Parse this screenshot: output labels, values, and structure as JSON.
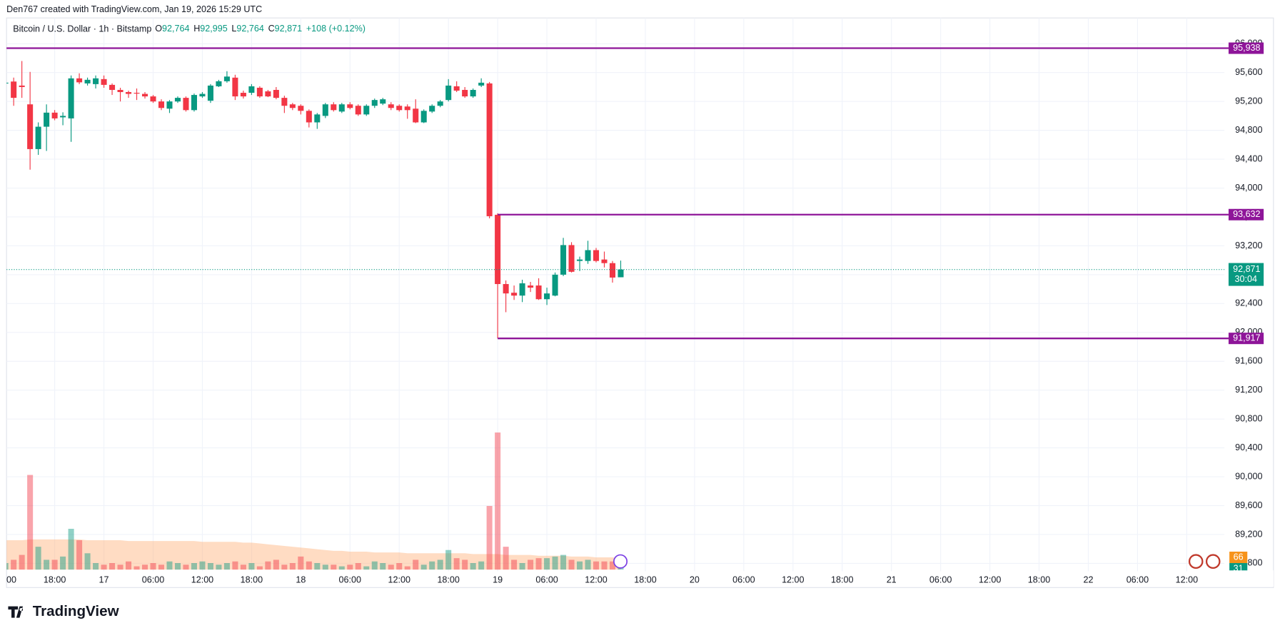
{
  "header": {
    "credit": "Den767 created with TradingView.com, Jan 19, 2026 15:29 UTC",
    "brand": "TradingView"
  },
  "chart_data": {
    "type": "candlestick",
    "title": "Bitcoin / U.S. Dollar · 1h · Bitstamp",
    "ohlc_legend": [
      {
        "label": "O",
        "value": "92,764"
      },
      {
        "label": "H",
        "value": "92,995"
      },
      {
        "label": "L",
        "value": "92,764"
      },
      {
        "label": "C",
        "value": "92,871"
      }
    ],
    "change": "+108 (+0.12%)",
    "categories": [
      null,
      null,
      null,
      null,
      null,
      null,
      null,
      null,
      null,
      null,
      null,
      null,
      null,
      null,
      null,
      null,
      null,
      null,
      null,
      null,
      null,
      null,
      null,
      null,
      null,
      null,
      null,
      null,
      null,
      null,
      null,
      null,
      null,
      null,
      null,
      null,
      null,
      null,
      null,
      null,
      null,
      null,
      null,
      null,
      null,
      null,
      null,
      null,
      null,
      null,
      null,
      null,
      null,
      null,
      null,
      null,
      null,
      null,
      null,
      null,
      null,
      null,
      null,
      null,
      null,
      null,
      null,
      null,
      null,
      null,
      null,
      null,
      null,
      null,
      null,
      null
    ],
    "open": [
      95450,
      95476,
      95420,
      95160,
      94540,
      94850,
      95045,
      94980,
      94965,
      95520,
      95450,
      95440,
      95510,
      95430,
      95360,
      95330,
      95320,
      95305,
      95270,
      95200,
      95100,
      95200,
      95250,
      95080,
      95270,
      95210,
      95410,
      95480,
      95530,
      95320,
      95320,
      95390,
      95340,
      95360,
      95250,
      95160,
      95140,
      95070,
      94910,
      95000,
      95160,
      95060,
      95160,
      95140,
      95020,
      95140,
      95170,
      95160,
      95140,
      95130,
      95100,
      94910,
      95060,
      95140,
      95220,
      95410,
      95360,
      95270,
      95420,
      95450,
      93630,
      92670,
      92550,
      92510,
      92650,
      92650,
      92460,
      92510,
      92800,
      93210,
      92990,
      92990,
      93140,
      93010,
      92960,
      92764
    ],
    "high": [
      95500,
      95530,
      95760,
      95610,
      94910,
      95160,
      95080,
      95050,
      95560,
      95590,
      95530,
      95560,
      95560,
      95450,
      95390,
      95350,
      95380,
      95330,
      95290,
      95230,
      95220,
      95270,
      95270,
      95310,
      95330,
      95440,
      95500,
      95620,
      95570,
      95350,
      95440,
      95410,
      95360,
      95400,
      95280,
      95180,
      95160,
      95090,
      95040,
      95180,
      95190,
      95180,
      95190,
      95160,
      95160,
      95240,
      95250,
      95190,
      95160,
      95160,
      95230,
      95090,
      95160,
      95220,
      95510,
      95480,
      95400,
      95380,
      95520,
      95470,
      93650,
      92720,
      92650,
      92730,
      92700,
      92750,
      92620,
      92830,
      93310,
      93250,
      93050,
      93270,
      93170,
      93120,
      92990,
      92995
    ],
    "low": [
      95400,
      95140,
      95250,
      94255,
      94460,
      94515,
      94940,
      94870,
      94640,
      95440,
      95420,
      95380,
      95390,
      95290,
      95200,
      95250,
      95220,
      95240,
      95180,
      95080,
      95040,
      95180,
      95060,
      95060,
      95250,
      95180,
      95400,
      95460,
      95220,
      95240,
      95290,
      95250,
      95260,
      95230,
      95040,
      95080,
      95020,
      94840,
      94820,
      94970,
      95060,
      95040,
      95090,
      95000,
      95000,
      95110,
      95150,
      95080,
      95060,
      94960,
      94900,
      94900,
      95040,
      95120,
      95200,
      95330,
      95250,
      95250,
      95400,
      93580,
      91917,
      92280,
      92450,
      92420,
      92560,
      92450,
      92380,
      92500,
      92780,
      92830,
      92850,
      92950,
      92970,
      92900,
      92690,
      92764
    ],
    "close": [
      95460,
      95250,
      95400,
      94540,
      94850,
      95045,
      94965,
      95000,
      95520,
      95465,
      95500,
      95520,
      95430,
      95360,
      95330,
      95305,
      95315,
      95270,
      95200,
      95110,
      95200,
      95250,
      95080,
      95290,
      95305,
      95420,
      95480,
      95545,
      95270,
      95270,
      95410,
      95270,
      95270,
      95250,
      95140,
      95110,
      95070,
      94910,
      95020,
      95160,
      95080,
      95160,
      95110,
      95020,
      95140,
      95220,
      95230,
      95110,
      95080,
      95080,
      94910,
      95070,
      95140,
      95200,
      95420,
      95350,
      95270,
      95360,
      95460,
      93610,
      92670,
      92540,
      92510,
      92680,
      92620,
      92460,
      92540,
      92800,
      93210,
      92840,
      93010,
      93140,
      92990,
      92960,
      92760,
      92871
    ],
    "up_color": "#089981",
    "down_color": "#f23645",
    "volume": [
      8,
      12,
      18,
      116,
      28,
      12,
      12,
      16,
      50,
      36,
      20,
      8,
      6,
      8,
      6,
      10,
      4,
      6,
      8,
      6,
      10,
      8,
      6,
      8,
      10,
      8,
      6,
      8,
      10,
      6,
      8,
      4,
      10,
      12,
      6,
      8,
      16,
      10,
      8,
      6,
      6,
      4,
      6,
      8,
      4,
      10,
      8,
      6,
      8,
      4,
      12,
      6,
      10,
      12,
      24,
      14,
      12,
      8,
      10,
      78,
      168,
      28,
      12,
      8,
      12,
      14,
      14,
      16,
      18,
      12,
      10,
      12,
      10,
      10,
      10,
      4
    ],
    "volume_ma": [
      36,
      36,
      36,
      37,
      37,
      37,
      37,
      37,
      37,
      37,
      36,
      36,
      36,
      36,
      36,
      35,
      35,
      35,
      35,
      35,
      35,
      35,
      35,
      35,
      34,
      34,
      34,
      34,
      34,
      33,
      33,
      32,
      31,
      30,
      29,
      28,
      27,
      26,
      25,
      24,
      23,
      23,
      22,
      22,
      22,
      21,
      21,
      21,
      21,
      20,
      20,
      20,
      20,
      20,
      20,
      20,
      20,
      19,
      19,
      19,
      19,
      18,
      18,
      18,
      18,
      17,
      17,
      17,
      17,
      16,
      16,
      16,
      15,
      15,
      15,
      14
    ],
    "volume_ylim": [
      0,
      175
    ],
    "volume_ma_color": "#ffb27a",
    "volume_labels": [
      {
        "label": "66",
        "color": "#f7931a"
      },
      {
        "label": "31",
        "color": "#089981"
      }
    ],
    "ylim": [
      88691,
      96357
    ],
    "yticks": [
      {
        "value": 96000,
        "label": "96,000"
      },
      {
        "value": 95600,
        "label": "95,600"
      },
      {
        "value": 95200,
        "label": "95,200"
      },
      {
        "value": 94800,
        "label": "94,800"
      },
      {
        "value": 94400,
        "label": "94,400"
      },
      {
        "value": 94000,
        "label": "94,000"
      },
      {
        "value": 93600,
        "label": "93,600"
      },
      {
        "value": 93200,
        "label": "93,200"
      },
      {
        "value": 92800,
        "label": "92,800"
      },
      {
        "value": 92400,
        "label": "92,400"
      },
      {
        "value": 92000,
        "label": "92,000"
      },
      {
        "value": 91600,
        "label": "91,600"
      },
      {
        "value": 91200,
        "label": "91,200"
      },
      {
        "value": 90800,
        "label": "90,800"
      },
      {
        "value": 90400,
        "label": "90,400"
      },
      {
        "value": 90000,
        "label": "90,000"
      },
      {
        "value": 89600,
        "label": "89,600"
      },
      {
        "value": 89200,
        "label": "89,200"
      },
      {
        "value": 88800,
        "label": "88,800"
      }
    ],
    "xlim": [
      0.13,
      148.6
    ],
    "xticks": [
      {
        "value": 0,
        "label": "00"
      },
      {
        "value": 6,
        "label": "18:00"
      },
      {
        "value": 12,
        "label": "17"
      },
      {
        "value": 18,
        "label": "06:00"
      },
      {
        "value": 24,
        "label": "12:00"
      },
      {
        "value": 30,
        "label": "18:00"
      },
      {
        "value": 36,
        "label": "18"
      },
      {
        "value": 42,
        "label": "06:00"
      },
      {
        "value": 48,
        "label": "12:00"
      },
      {
        "value": 54,
        "label": "18:00"
      },
      {
        "value": 60,
        "label": "19"
      },
      {
        "value": 66,
        "label": "06:00"
      },
      {
        "value": 72,
        "label": "12:00"
      },
      {
        "value": 78,
        "label": "18:00"
      },
      {
        "value": 84,
        "label": "20"
      },
      {
        "value": 90,
        "label": "06:00"
      },
      {
        "value": 96,
        "label": "12:00"
      },
      {
        "value": 102,
        "label": "18:00"
      },
      {
        "value": 108,
        "label": "21"
      },
      {
        "value": 114,
        "label": "06:00"
      },
      {
        "value": 120,
        "label": "12:00"
      },
      {
        "value": 126,
        "label": "18:00"
      },
      {
        "value": 132,
        "label": "22"
      },
      {
        "value": 138,
        "label": "06:00"
      },
      {
        "value": 144,
        "label": "12:00"
      }
    ],
    "grid": true,
    "levels": [
      {
        "value": 95938,
        "label": "95,938",
        "from": 0
      },
      {
        "value": 93632,
        "label": "93,632",
        "from": 60
      },
      {
        "value": 91917,
        "label": "91,917",
        "from": 60
      }
    ],
    "level_color": "#8e1599",
    "last_price": {
      "value": 92871,
      "label": "92,871",
      "countdown": "30:04"
    }
  }
}
